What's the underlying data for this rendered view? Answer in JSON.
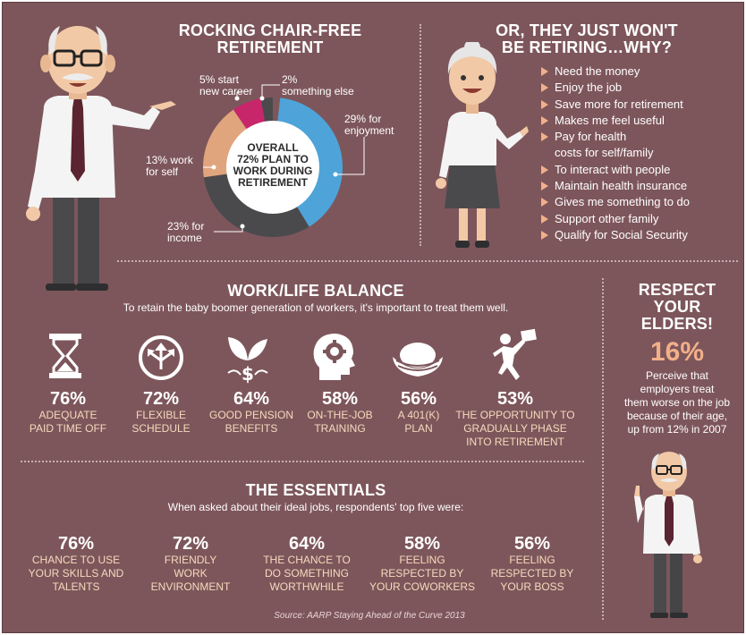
{
  "colors": {
    "background": "#7d565b",
    "accent_peach": "#f2b08a",
    "donut_blue": "#4ea4d9",
    "donut_dark": "#4a4a4d",
    "donut_tan": "#e0a57d",
    "donut_magenta": "#c8266b",
    "text_light": "#f7d9bd"
  },
  "rocking": {
    "title": "ROCKING CHAIR-FREE\nRETIREMENT",
    "center": "OVERALL\n72% PLAN TO\nWORK DURING\nRETIREMENT",
    "labels": {
      "new_career": "5% start\nnew career",
      "something_else": "2%\nsomething else",
      "enjoyment": "29% for\nenjoyment",
      "work_for_self": "13% work\nfor self",
      "income": "23% for\nincome"
    }
  },
  "chart_data": {
    "type": "pie",
    "categories": [
      "for enjoyment",
      "for income",
      "work for self",
      "start new career",
      "something else"
    ],
    "values": [
      29,
      23,
      13,
      5,
      2
    ],
    "center_text": "OVERALL 72% PLAN TO WORK DURING RETIREMENT"
  },
  "not_retiring": {
    "title": "OR, THEY JUST WON'T\nBE RETIRING…WHY?",
    "reasons": [
      "Need the money",
      "Enjoy the job",
      "Save more for retirement",
      "Makes me feel useful",
      "Pay for health",
      "costs for self/family",
      "To interact with people",
      "Maintain health insurance",
      "Gives me something to do",
      "Support other family",
      "Qualify for Social Security"
    ]
  },
  "balance": {
    "title": "WORK/LIFE BALANCE",
    "subtitle": "To retain the baby boomer generation of workers, it's important to treat them well.",
    "items": [
      {
        "pct": "76%",
        "desc": "ADEQUATE\nPAID TIME OFF",
        "icon": "hourglass-icon"
      },
      {
        "pct": "72%",
        "desc": "FLEXIBLE\nSCHEDULE",
        "icon": "arrows-circle-icon"
      },
      {
        "pct": "64%",
        "desc": "GOOD PENSION\nBENEFITS",
        "icon": "money-plant-icon"
      },
      {
        "pct": "58%",
        "desc": "ON-THE-JOB\nTRAINING",
        "icon": "head-gear-icon"
      },
      {
        "pct": "56%",
        "desc": "A 401(K)\nPLAN",
        "icon": "nest-egg-icon"
      },
      {
        "pct": "53%",
        "desc": "THE OPPORTUNITY TO\nGRADUALLY PHASE\nINTO RETIREMENT",
        "icon": "jumping-person-icon"
      }
    ]
  },
  "respect": {
    "title": "RESPECT\nYOUR\nELDERS!",
    "pct": "16%",
    "text": "Perceive that\nemployers treat\nthem worse on the job\nbecause of their age,\nup from 12% in 2007"
  },
  "essentials": {
    "title": "THE ESSENTIALS",
    "subtitle": "When asked about their ideal jobs, respondents' top five were:",
    "items": [
      {
        "pct": "76%",
        "desc": "CHANCE TO USE\nYOUR SKILLS AND\nTALENTS"
      },
      {
        "pct": "72%",
        "desc": "FRIENDLY\nWORK\nENVIRONMENT"
      },
      {
        "pct": "64%",
        "desc": "THE CHANCE TO\nDO SOMETHING\nWORTHWHILE"
      },
      {
        "pct": "58%",
        "desc": "FEELING\nRESPECTED BY\nYOUR COWORKERS"
      },
      {
        "pct": "56%",
        "desc": "FEELING\nRESPECTED BY\nYOUR BOSS"
      }
    ]
  },
  "source": "Source: AARP Staying Ahead of the Curve 2013"
}
